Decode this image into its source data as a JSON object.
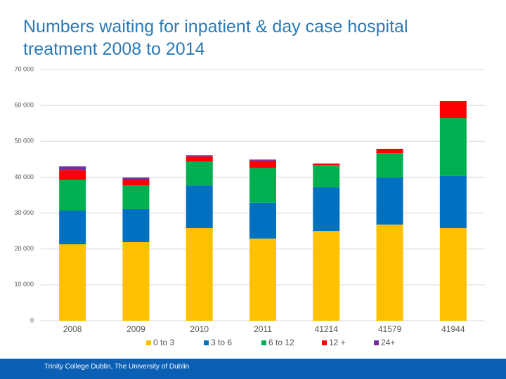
{
  "chart_data": {
    "type": "stacked_bar",
    "title": "Numbers waiting for inpatient & day case hospital treatment 2008 to 2014",
    "categories": [
      "2008",
      "2009",
      "2010",
      "2011",
      "41214",
      "41579",
      "41944"
    ],
    "series": [
      {
        "name": "0 to 3",
        "color": "#ffc000",
        "values": [
          21300,
          21900,
          25800,
          22900,
          25000,
          26800,
          25800
        ]
      },
      {
        "name": "3 to 6",
        "color": "#0070c0",
        "values": [
          9400,
          9200,
          11900,
          10000,
          12200,
          13100,
          14500
        ]
      },
      {
        "name": "6 to 12",
        "color": "#00b050",
        "values": [
          8600,
          6600,
          6700,
          9700,
          6200,
          6800,
          16200
        ]
      },
      {
        "name": "12 +",
        "color": "#ff0000",
        "values": [
          2700,
          1600,
          1400,
          2000,
          400,
          1200,
          4700
        ]
      },
      {
        "name": "24+",
        "color": "#7030a0",
        "values": [
          1000,
          600,
          300,
          300,
          0,
          0,
          0
        ]
      }
    ],
    "ylim": [
      0,
      70000
    ],
    "yticks": [
      0,
      {
        "value": 10000,
        "label": "10 000"
      },
      {
        "value": 20000,
        "label": "20 000"
      },
      {
        "value": 30000,
        "label": "30 000"
      },
      {
        "value": 40000,
        "label": "40 000"
      },
      {
        "value": 50000,
        "label": "50 000"
      },
      {
        "value": 60000,
        "label": "60 000"
      },
      {
        "value": 70000,
        "label": "70 000"
      }
    ],
    "grid": true,
    "legend": "bottom"
  },
  "footer": "Trinity College Dublin, The University of Dublin"
}
